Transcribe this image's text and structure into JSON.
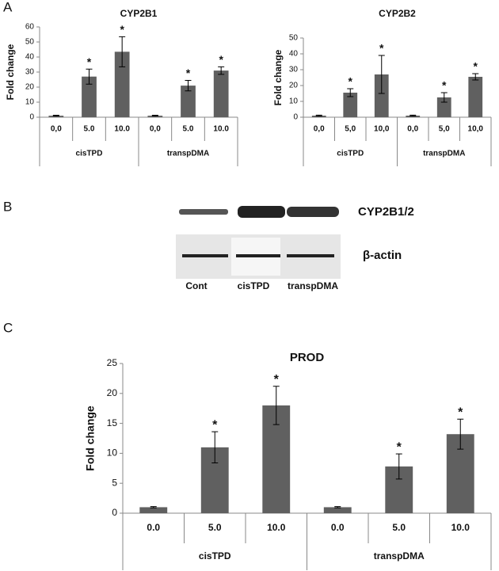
{
  "panel_labels": [
    "A",
    "B",
    "C"
  ],
  "blot": {
    "bands": [
      "CYP2B1/2",
      "β-actin"
    ],
    "lanes": [
      "Cont",
      "cisTPD",
      "transpDMA"
    ]
  },
  "chart_data": [
    {
      "type": "bar",
      "title": "CYP2B1",
      "ylabel": "Fold change",
      "categories": [
        "0,0",
        "5.0",
        "10.0",
        "0,0",
        "5.0",
        "10.0"
      ],
      "groups": [
        "cisTPD",
        "transpDMA"
      ],
      "values": [
        1,
        27,
        43.5,
        1,
        21,
        31
      ],
      "errors": [
        0.3,
        5,
        10,
        0.3,
        3.5,
        2.5
      ],
      "annotations": [
        null,
        "*",
        "*",
        null,
        "*",
        "*"
      ],
      "color": "#606060",
      "ylim": [
        0,
        60
      ],
      "yticks": [
        0,
        10,
        20,
        30,
        40,
        50,
        60
      ]
    },
    {
      "type": "bar",
      "title": "CYP2B2",
      "ylabel": "Fold change",
      "categories": [
        "0,0",
        "5,0",
        "10,0",
        "0,0",
        "5,0",
        "10,0"
      ],
      "groups": [
        "cisTPD",
        "transpDMA"
      ],
      "values": [
        1,
        15.5,
        27,
        1,
        12.5,
        25.5
      ],
      "errors": [
        0.3,
        2.5,
        12,
        0.3,
        3,
        2
      ],
      "annotations": [
        null,
        "*",
        "*",
        null,
        "*",
        "*"
      ],
      "color": "#606060",
      "ylim": [
        0,
        50
      ],
      "yticks": [
        0,
        10,
        20,
        30,
        40,
        50
      ]
    },
    {
      "type": "bar",
      "title": "PROD",
      "ylabel": "Fold change",
      "categories": [
        "0.0",
        "5.0",
        "10.0",
        "0.0",
        "5.0",
        "10.0"
      ],
      "groups": [
        "cisTPD",
        "transpDMA"
      ],
      "values": [
        1,
        11,
        18,
        1,
        7.8,
        13.2
      ],
      "errors": [
        0.1,
        2.6,
        3.2,
        0.1,
        2.1,
        2.5
      ],
      "annotations": [
        null,
        "*",
        "*",
        null,
        "*",
        "*"
      ],
      "color": "#606060",
      "ylim": [
        0,
        25
      ],
      "yticks": [
        0,
        5,
        10,
        15,
        20,
        25
      ]
    }
  ]
}
